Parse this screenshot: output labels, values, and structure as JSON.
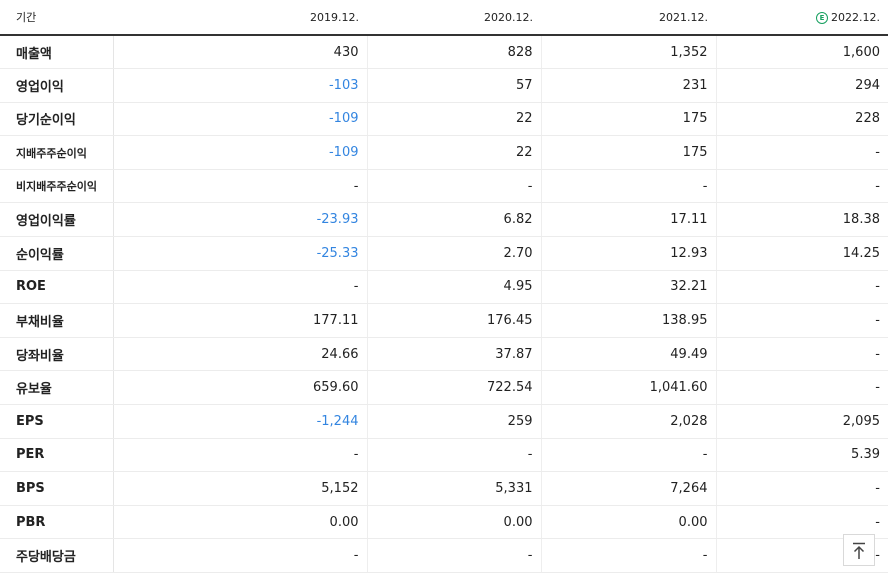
{
  "header": {
    "label": "기간",
    "periods": [
      "2019.12.",
      "2020.12.",
      "2021.12.",
      "2022.12."
    ],
    "estimate_marker": "E"
  },
  "rows": [
    {
      "label": "매출액",
      "values": [
        "430",
        "828",
        "1,352",
        "1,600"
      ]
    },
    {
      "label": "영업이익",
      "values": [
        "-103",
        "57",
        "231",
        "294"
      ]
    },
    {
      "label": "당기순이익",
      "values": [
        "-109",
        "22",
        "175",
        "228"
      ]
    },
    {
      "label": "지배주주순이익",
      "values": [
        "-109",
        "22",
        "175",
        "-"
      ]
    },
    {
      "label": "비지배주주순이익",
      "values": [
        "-",
        "-",
        "-",
        "-"
      ]
    },
    {
      "label": "영업이익률",
      "values": [
        "-23.93",
        "6.82",
        "17.11",
        "18.38"
      ]
    },
    {
      "label": "순이익률",
      "values": [
        "-25.33",
        "2.70",
        "12.93",
        "14.25"
      ]
    },
    {
      "label": "ROE",
      "values": [
        "-",
        "4.95",
        "32.21",
        "-"
      ]
    },
    {
      "label": "부채비율",
      "values": [
        "177.11",
        "176.45",
        "138.95",
        "-"
      ]
    },
    {
      "label": "당좌비율",
      "values": [
        "24.66",
        "37.87",
        "49.49",
        "-"
      ]
    },
    {
      "label": "유보율",
      "values": [
        "659.60",
        "722.54",
        "1,041.60",
        "-"
      ]
    },
    {
      "label": "EPS",
      "values": [
        "-1,244",
        "259",
        "2,028",
        "2,095"
      ]
    },
    {
      "label": "PER",
      "values": [
        "-",
        "-",
        "-",
        "5.39"
      ]
    },
    {
      "label": "BPS",
      "values": [
        "5,152",
        "5,331",
        "7,264",
        "-"
      ]
    },
    {
      "label": "PBR",
      "values": [
        "0.00",
        "0.00",
        "0.00",
        "-"
      ]
    },
    {
      "label": "주당배당금",
      "values": [
        "-",
        "-",
        "-",
        "-"
      ]
    }
  ],
  "colors": {
    "negative": "#3385e0",
    "estimate": "#18a060"
  },
  "icons": {
    "scroll_top": "arrow-up-to-top-icon"
  }
}
